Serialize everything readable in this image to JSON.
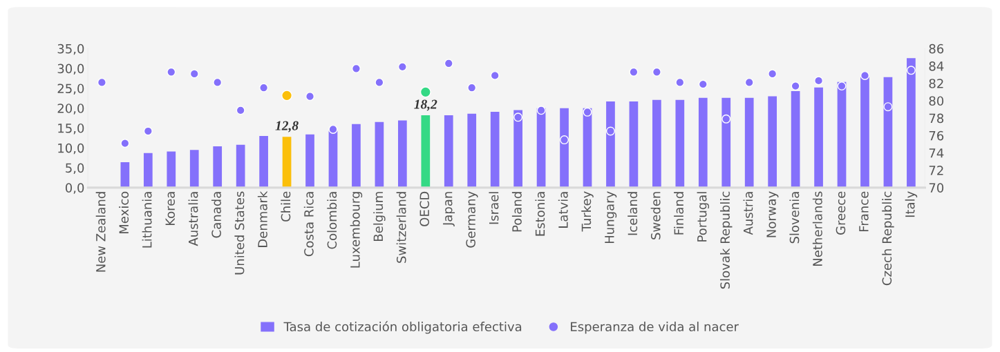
{
  "chart_data": {
    "type": "bar",
    "categories": [
      "New Zealand",
      "Mexico",
      "Lithuania",
      "Korea",
      "Australia",
      "Canada",
      "United States",
      "Denmark",
      "Chile",
      "Costa Rica",
      "Colombia",
      "Luxembourg",
      "Belgium",
      "Switzerland",
      "OECD",
      "Japan",
      "Germany",
      "Israel",
      "Poland",
      "Estonia",
      "Latvia",
      "Turkey",
      "Hungary",
      "Iceland",
      "Sweden",
      "Finland",
      "Portugal",
      "Slovak Republic",
      "Austria",
      "Norway",
      "Slovenia",
      "Netherlands",
      "Greece",
      "France",
      "Czech Republic",
      "Italy"
    ],
    "series": [
      {
        "name": "Tasa de cotización obligatoria efectiva",
        "color": "#8470fb",
        "colors": [
          "#8470fb",
          "#8470fb",
          "#8470fb",
          "#8470fb",
          "#8470fb",
          "#8470fb",
          "#8470fb",
          "#8470fb",
          "#fbbf0a",
          "#8470fb",
          "#8470fb",
          "#8470fb",
          "#8470fb",
          "#8470fb",
          "#34d985",
          "#8470fb",
          "#8470fb",
          "#8470fb",
          "#8470fb",
          "#8470fb",
          "#8470fb",
          "#8470fb",
          "#8470fb",
          "#8470fb",
          "#8470fb",
          "#8470fb",
          "#8470fb",
          "#8470fb",
          "#8470fb",
          "#8470fb",
          "#8470fb",
          "#8470fb",
          "#8470fb",
          "#8470fb",
          "#8470fb",
          "#8470fb"
        ],
        "values": [
          null,
          6.4,
          8.7,
          9.1,
          9.5,
          10.4,
          10.8,
          13.0,
          12.8,
          13.4,
          14.3,
          16.0,
          16.5,
          16.9,
          18.2,
          18.2,
          18.6,
          19.1,
          19.5,
          20.0,
          20.0,
          20.0,
          21.7,
          21.7,
          22.1,
          22.1,
          22.6,
          22.6,
          22.6,
          23.0,
          24.3,
          25.2,
          26.6,
          27.8,
          27.8,
          32.6
        ],
        "value_labels": [
          null,
          null,
          null,
          null,
          null,
          null,
          null,
          null,
          "12,8",
          null,
          null,
          null,
          null,
          null,
          "18,2",
          null,
          null,
          null,
          null,
          null,
          null,
          null,
          null,
          null,
          null,
          null,
          null,
          null,
          null,
          null,
          null,
          null,
          null,
          null,
          null,
          null
        ]
      },
      {
        "name": "Esperanza de vida al nacer",
        "type": "scatter",
        "axis": "y2",
        "marker": "circle",
        "color": "#8470fb",
        "colors": [
          "#8470fb",
          "#8470fb",
          "#8470fb",
          "#8470fb",
          "#8470fb",
          "#8470fb",
          "#8470fb",
          "#8470fb",
          "#fbbf0a",
          "#8470fb",
          "#8470fb",
          "#8470fb",
          "#8470fb",
          "#8470fb",
          "#34d985",
          "#8470fb",
          "#8470fb",
          "#8470fb",
          "#8470fb",
          "#8470fb",
          "#8470fb",
          "#8470fb",
          "#8470fb",
          "#8470fb",
          "#8470fb",
          "#8470fb",
          "#8470fb",
          "#8470fb",
          "#8470fb",
          "#8470fb",
          "#8470fb",
          "#8470fb",
          "#8470fb",
          "#8470fb",
          "#8470fb",
          "#8470fb"
        ],
        "values": [
          82.1,
          75.1,
          76.5,
          83.3,
          83.1,
          82.1,
          78.9,
          81.5,
          80.6,
          80.5,
          76.7,
          83.7,
          82.1,
          83.9,
          81.0,
          84.3,
          81.5,
          82.9,
          78.1,
          78.9,
          75.5,
          78.7,
          76.5,
          83.3,
          83.3,
          82.1,
          81.9,
          77.9,
          82.1,
          83.1,
          81.7,
          82.3,
          81.7,
          82.9,
          79.3,
          83.5
        ]
      }
    ],
    "ylim": [
      0,
      35
    ],
    "yticks": [
      {
        "value": 0,
        "label": "0,0"
      },
      {
        "value": 5,
        "label": "5,0"
      },
      {
        "value": 10,
        "label": "10,0"
      },
      {
        "value": 15,
        "label": "15,0"
      },
      {
        "value": 20,
        "label": "20,0"
      },
      {
        "value": 25,
        "label": "25,0"
      },
      {
        "value": 30,
        "label": "30,0"
      },
      {
        "value": 35,
        "label": "35,0"
      }
    ],
    "y2lim": [
      70,
      86
    ],
    "y2ticks": [
      70,
      72,
      74,
      76,
      78,
      80,
      82,
      84,
      86
    ],
    "grid": false,
    "legend": "bottom"
  }
}
